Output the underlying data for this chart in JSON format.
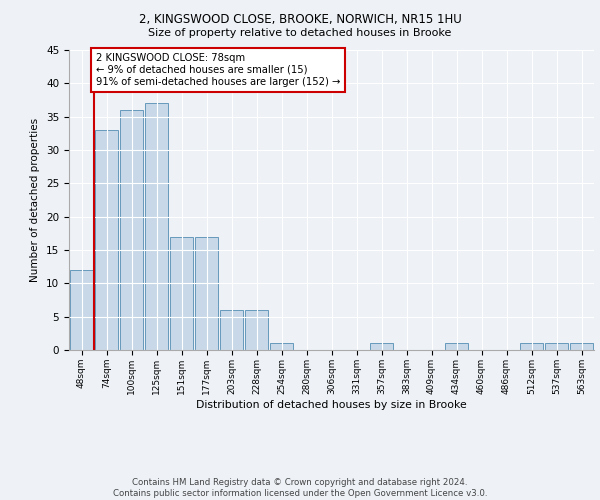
{
  "title1": "2, KINGSWOOD CLOSE, BROOKE, NORWICH, NR15 1HU",
  "title2": "Size of property relative to detached houses in Brooke",
  "xlabel": "Distribution of detached houses by size in Brooke",
  "ylabel": "Number of detached properties",
  "categories": [
    "48sqm",
    "74sqm",
    "100sqm",
    "125sqm",
    "151sqm",
    "177sqm",
    "203sqm",
    "228sqm",
    "254sqm",
    "280sqm",
    "306sqm",
    "331sqm",
    "357sqm",
    "383sqm",
    "409sqm",
    "434sqm",
    "460sqm",
    "486sqm",
    "512sqm",
    "537sqm",
    "563sqm"
  ],
  "values": [
    12,
    33,
    36,
    37,
    17,
    17,
    6,
    6,
    1,
    0,
    0,
    0,
    1,
    0,
    0,
    1,
    0,
    0,
    1,
    1,
    1
  ],
  "bar_color": "#c8d8e8",
  "bar_edge_color": "#6699bb",
  "annotation_text": "2 KINGSWOOD CLOSE: 78sqm\n← 9% of detached houses are smaller (15)\n91% of semi-detached houses are larger (152) →",
  "annotation_box_color": "#ffffff",
  "annotation_box_edge": "#cc0000",
  "property_line_color": "#cc0000",
  "property_line_x": 0.5,
  "ylim": [
    0,
    45
  ],
  "yticks": [
    0,
    5,
    10,
    15,
    20,
    25,
    30,
    35,
    40,
    45
  ],
  "footer": "Contains HM Land Registry data © Crown copyright and database right 2024.\nContains public sector information licensed under the Open Government Licence v3.0.",
  "bg_color": "#eef2f7",
  "plot_bg_color": "#eef2f7",
  "grid_color": "#ffffff"
}
